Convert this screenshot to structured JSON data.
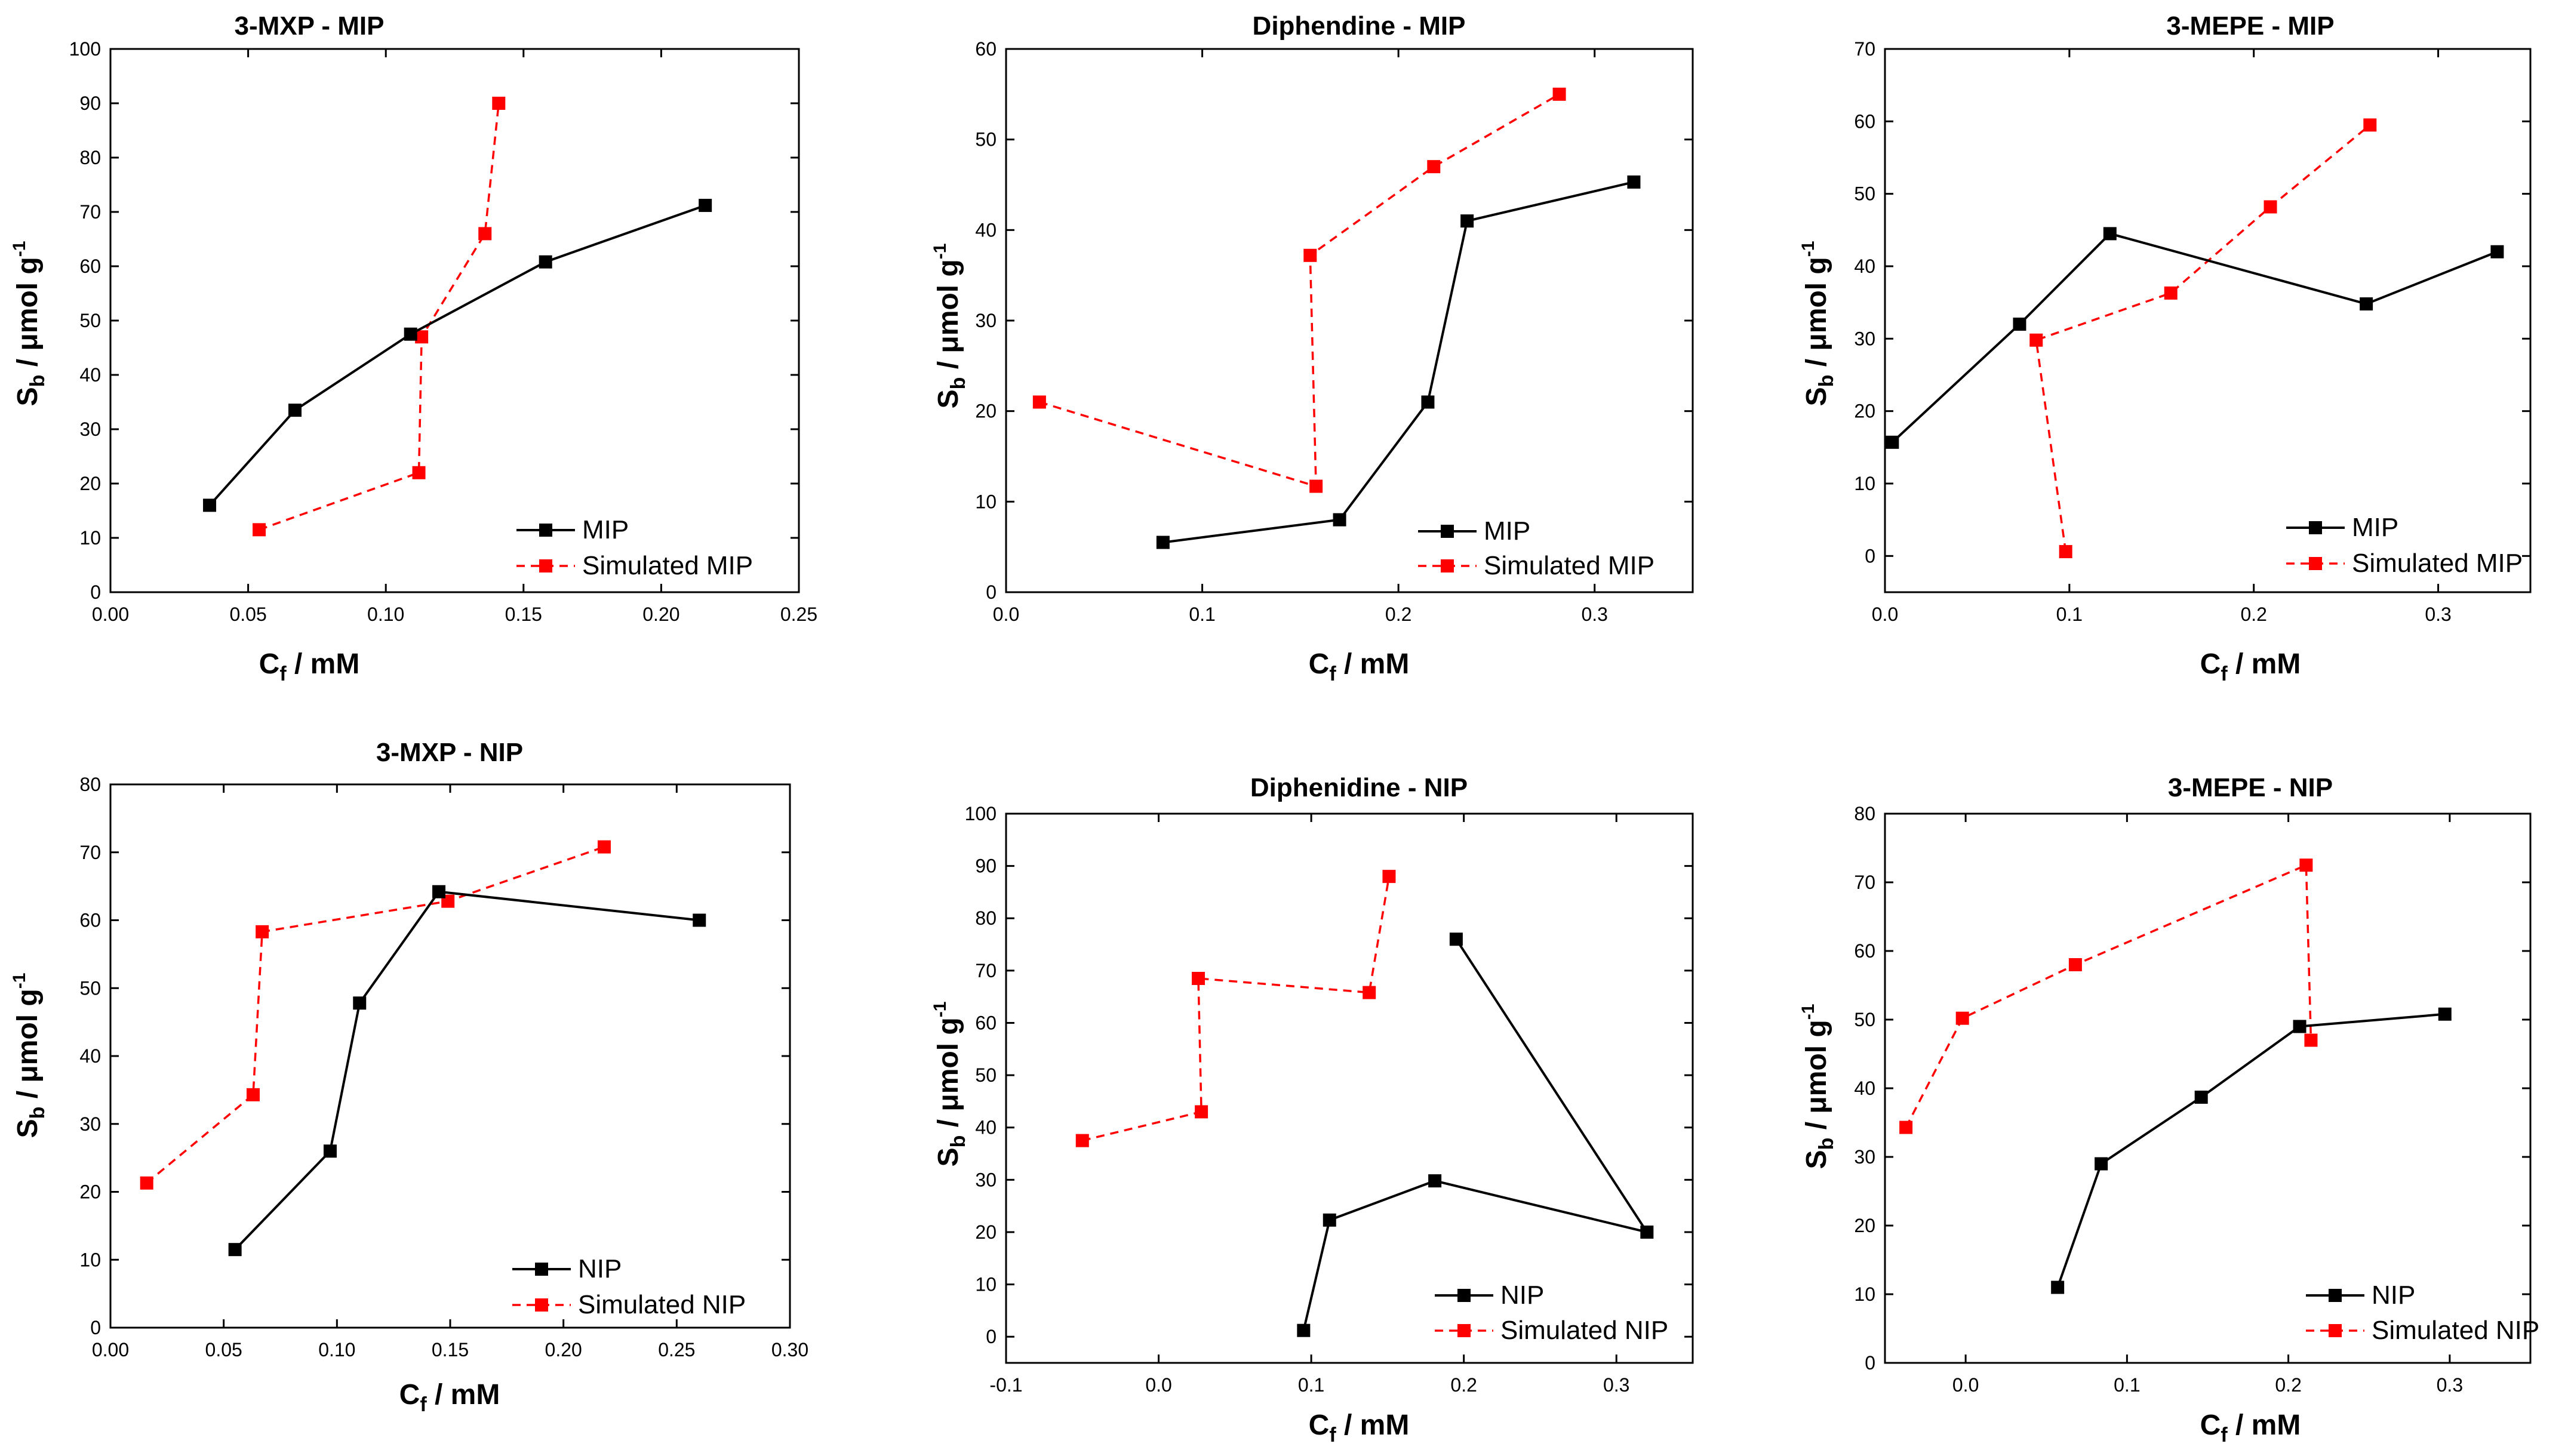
{
  "colors": {
    "experimental": "#000000",
    "simulated": "#ff0000",
    "axis": "#000000",
    "background": "#ffffff"
  },
  "chart_data": [
    {
      "id": "p1",
      "type": "line",
      "title": "3-MXP - MIP",
      "xlabel": {
        "main": "C",
        "sub": "f",
        "rest": " / mM"
      },
      "ylabel": {
        "main": "S",
        "sub": "b",
        "rest": " / μmol g",
        "sup": "-1"
      },
      "xlim": [
        0,
        0.25
      ],
      "ylim": [
        0,
        100
      ],
      "xticks": [
        0,
        0.05,
        0.1,
        0.15,
        0.2,
        0.25
      ],
      "xtick_labels": [
        "0.00",
        "0.05",
        "0.10",
        "0.15",
        "0.20",
        "0.25"
      ],
      "yticks": [
        0,
        10,
        20,
        30,
        40,
        50,
        60,
        70,
        80,
        90,
        100
      ],
      "ytick_labels": [
        "0",
        "10",
        "20",
        "30",
        "40",
        "50",
        "60",
        "70",
        "80",
        "90",
        "100"
      ],
      "legend_position": "bottom-right",
      "series": [
        {
          "name": "MIP",
          "style": "solid",
          "color": "#000000",
          "x": [
            0.036,
            0.067,
            0.109,
            0.158,
            0.216
          ],
          "y": [
            16,
            33.5,
            47.5,
            60.8,
            71.2
          ]
        },
        {
          "name": "Simulated MIP",
          "style": "dashed",
          "color": "#ff0000",
          "x": [
            0.054,
            0.112,
            0.113,
            0.136,
            0.141
          ],
          "y": [
            11.5,
            22,
            47,
            66,
            90
          ]
        }
      ]
    },
    {
      "id": "p2",
      "type": "line",
      "title": "Diphendine - MIP",
      "xlabel": {
        "main": "C",
        "sub": "f",
        "rest": " / mM"
      },
      "ylabel": {
        "main": "S",
        "sub": "b",
        "rest": " / μmol g",
        "sup": "-1"
      },
      "xlim": [
        0,
        0.35
      ],
      "ylim": [
        0,
        60
      ],
      "xticks": [
        0,
        0.1,
        0.2,
        0.3
      ],
      "xtick_labels": [
        "0.0",
        "0.1",
        "0.2",
        "0.3"
      ],
      "yticks": [
        0,
        10,
        20,
        30,
        40,
        50,
        60
      ],
      "ytick_labels": [
        "0",
        "10",
        "20",
        "30",
        "40",
        "50",
        "60"
      ],
      "legend_position": "bottom-right",
      "series": [
        {
          "name": "MIP",
          "style": "solid",
          "color": "#000000",
          "x": [
            0.08,
            0.17,
            0.215,
            0.235,
            0.32
          ],
          "y": [
            5.5,
            8,
            21,
            41,
            45.3
          ]
        },
        {
          "name": "Simulated MIP",
          "style": "dashed",
          "color": "#ff0000",
          "x": [
            0.017,
            0.158,
            0.155,
            0.218,
            0.282
          ],
          "y": [
            21,
            11.7,
            37.2,
            47,
            55
          ]
        }
      ]
    },
    {
      "id": "p3",
      "type": "line",
      "title": "3-MEPE - MIP",
      "xlabel": {
        "main": "C",
        "sub": "f",
        "rest": " / mM"
      },
      "ylabel": {
        "main": "S",
        "sub": "b",
        "rest": " / μmol g",
        "sup": "-1"
      },
      "xlim": [
        0,
        0.35
      ],
      "ylim": [
        -5,
        70
      ],
      "xticks": [
        0,
        0.1,
        0.2,
        0.3
      ],
      "xtick_labels": [
        "0.0",
        "0.1",
        "0.2",
        "0.3"
      ],
      "yticks": [
        0,
        10,
        20,
        30,
        40,
        50,
        60,
        70
      ],
      "ytick_labels": [
        "0",
        "10",
        "20",
        "30",
        "40",
        "50",
        "60",
        "70"
      ],
      "legend_position": "bottom-right",
      "series": [
        {
          "name": "MIP",
          "style": "solid",
          "color": "#000000",
          "x": [
            0.004,
            0.073,
            0.122,
            0.261,
            0.332
          ],
          "y": [
            15.7,
            32,
            44.5,
            34.8,
            42
          ]
        },
        {
          "name": "Simulated MIP",
          "style": "dashed",
          "color": "#ff0000",
          "x": [
            0.098,
            0.082,
            0.155,
            0.209,
            0.263
          ],
          "y": [
            0.6,
            29.8,
            36.3,
            48.2,
            59.5
          ]
        }
      ]
    },
    {
      "id": "p4",
      "type": "line",
      "title": "3-MXP - NIP",
      "xlabel": {
        "main": "C",
        "sub": "f",
        "rest": " / mM"
      },
      "ylabel": {
        "main": "S",
        "sub": "b",
        "rest": " / μmol g",
        "sup": "-1"
      },
      "xlim": [
        0,
        0.3
      ],
      "ylim": [
        0,
        80
      ],
      "xticks": [
        0,
        0.05,
        0.1,
        0.15,
        0.2,
        0.25,
        0.3
      ],
      "xtick_labels": [
        "0.00",
        "0.05",
        "0.10",
        "0.15",
        "0.20",
        "0.25",
        "0.30"
      ],
      "yticks": [
        0,
        10,
        20,
        30,
        40,
        50,
        60,
        70,
        80
      ],
      "ytick_labels": [
        "0",
        "10",
        "20",
        "30",
        "40",
        "50",
        "60",
        "70",
        "80"
      ],
      "legend_position": "bottom-right",
      "series": [
        {
          "name": "NIP",
          "style": "solid",
          "color": "#000000",
          "x": [
            0.055,
            0.097,
            0.11,
            0.145,
            0.26
          ],
          "y": [
            11.5,
            26,
            47.8,
            64.2,
            60
          ]
        },
        {
          "name": "Simulated NIP",
          "style": "dashed",
          "color": "#ff0000",
          "x": [
            0.016,
            0.063,
            0.067,
            0.149,
            0.218
          ],
          "y": [
            21.3,
            34.3,
            58.3,
            62.8,
            70.8
          ]
        }
      ]
    },
    {
      "id": "p5",
      "type": "line",
      "title": "Diphenidine - NIP",
      "xlabel": {
        "main": "C",
        "sub": "f",
        "rest": " / mM"
      },
      "ylabel": {
        "main": "S",
        "sub": "b",
        "rest": " / μmol g",
        "sup": "-1"
      },
      "xlim": [
        -0.1,
        0.35
      ],
      "ylim": [
        -5,
        100
      ],
      "xticks": [
        -0.1,
        0,
        0.1,
        0.2,
        0.3
      ],
      "xtick_labels": [
        "-0.1",
        "0.0",
        "0.1",
        "0.2",
        "0.3"
      ],
      "yticks": [
        0,
        10,
        20,
        30,
        40,
        50,
        60,
        70,
        80,
        90,
        100
      ],
      "ytick_labels": [
        "0",
        "10",
        "20",
        "30",
        "40",
        "50",
        "60",
        "70",
        "80",
        "90",
        "100"
      ],
      "legend_position": "bottom-right",
      "series": [
        {
          "name": "NIP",
          "style": "solid",
          "color": "#000000",
          "x": [
            0.095,
            0.112,
            0.181,
            0.32,
            0.195
          ],
          "y": [
            1.2,
            22.3,
            29.8,
            20,
            76
          ]
        },
        {
          "name": "Simulated NIP",
          "style": "dashed",
          "color": "#ff0000",
          "x": [
            -0.05,
            0.028,
            0.026,
            0.138,
            0.151
          ],
          "y": [
            37.5,
            43,
            68.5,
            65.8,
            88
          ]
        }
      ]
    },
    {
      "id": "p6",
      "type": "line",
      "title": "3-MEPE - NIP",
      "xlabel": {
        "main": "C",
        "sub": "f",
        "rest": " / mM"
      },
      "ylabel": {
        "main": "S",
        "sub": "b",
        "rest": " / μmol g",
        "sup": "-1"
      },
      "xlim": [
        -0.05,
        0.35
      ],
      "ylim": [
        0,
        80
      ],
      "xticks": [
        0,
        0.1,
        0.2,
        0.3
      ],
      "xtick_labels": [
        "0.0",
        "0.1",
        "0.2",
        "0.3"
      ],
      "yticks": [
        0,
        10,
        20,
        30,
        40,
        50,
        60,
        70,
        80
      ],
      "ytick_labels": [
        "0",
        "10",
        "20",
        "30",
        "40",
        "50",
        "60",
        "70",
        "80"
      ],
      "legend_position": "bottom-right",
      "series": [
        {
          "name": "NIP",
          "style": "solid",
          "color": "#000000",
          "x": [
            0.057,
            0.084,
            0.146,
            0.207,
            0.297
          ],
          "y": [
            11,
            29,
            38.7,
            49,
            50.8
          ]
        },
        {
          "name": "Simulated NIP",
          "style": "dashed",
          "color": "#ff0000",
          "x": [
            -0.037,
            -0.002,
            0.068,
            0.211,
            0.214
          ],
          "y": [
            34.3,
            50.2,
            58,
            72.5,
            47
          ]
        }
      ]
    }
  ]
}
